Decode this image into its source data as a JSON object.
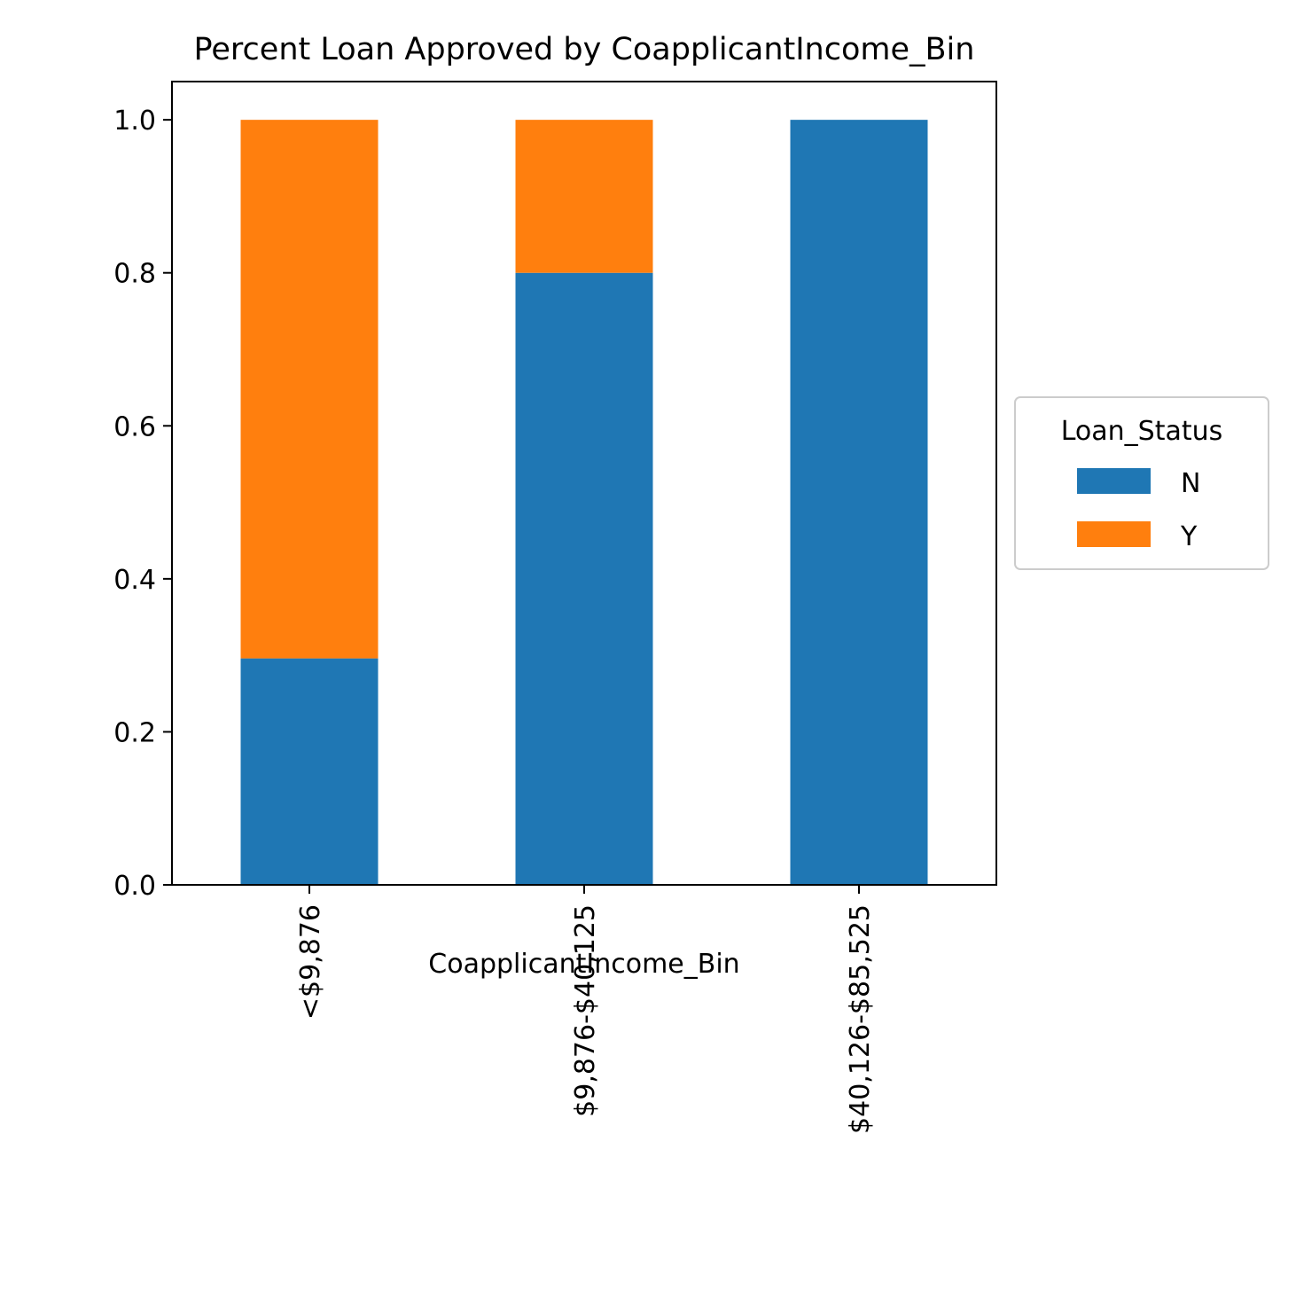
{
  "chart_data": {
    "type": "bar",
    "stacked": true,
    "title": "Percent Loan Approved by CoapplicantIncome_Bin",
    "xlabel": "CoapplicantIncome_Bin",
    "ylabel": "",
    "categories": [
      "<$9,876",
      "$9,876-$40,125",
      "$40,126-$85,525"
    ],
    "series": [
      {
        "name": "N",
        "color": "#1f77b4",
        "values": [
          0.296,
          0.8,
          1.0
        ]
      },
      {
        "name": "Y",
        "color": "#ff7f0e",
        "values": [
          0.704,
          0.2,
          0.0
        ]
      }
    ],
    "ylim": [
      0,
      1.05
    ],
    "yticks": [
      "0.0",
      "0.2",
      "0.4",
      "0.6",
      "0.8",
      "1.0"
    ],
    "grid": false,
    "legend": {
      "title": "Loan_Status",
      "placement": "outside-right-center",
      "entries": [
        "N",
        "Y"
      ]
    }
  }
}
